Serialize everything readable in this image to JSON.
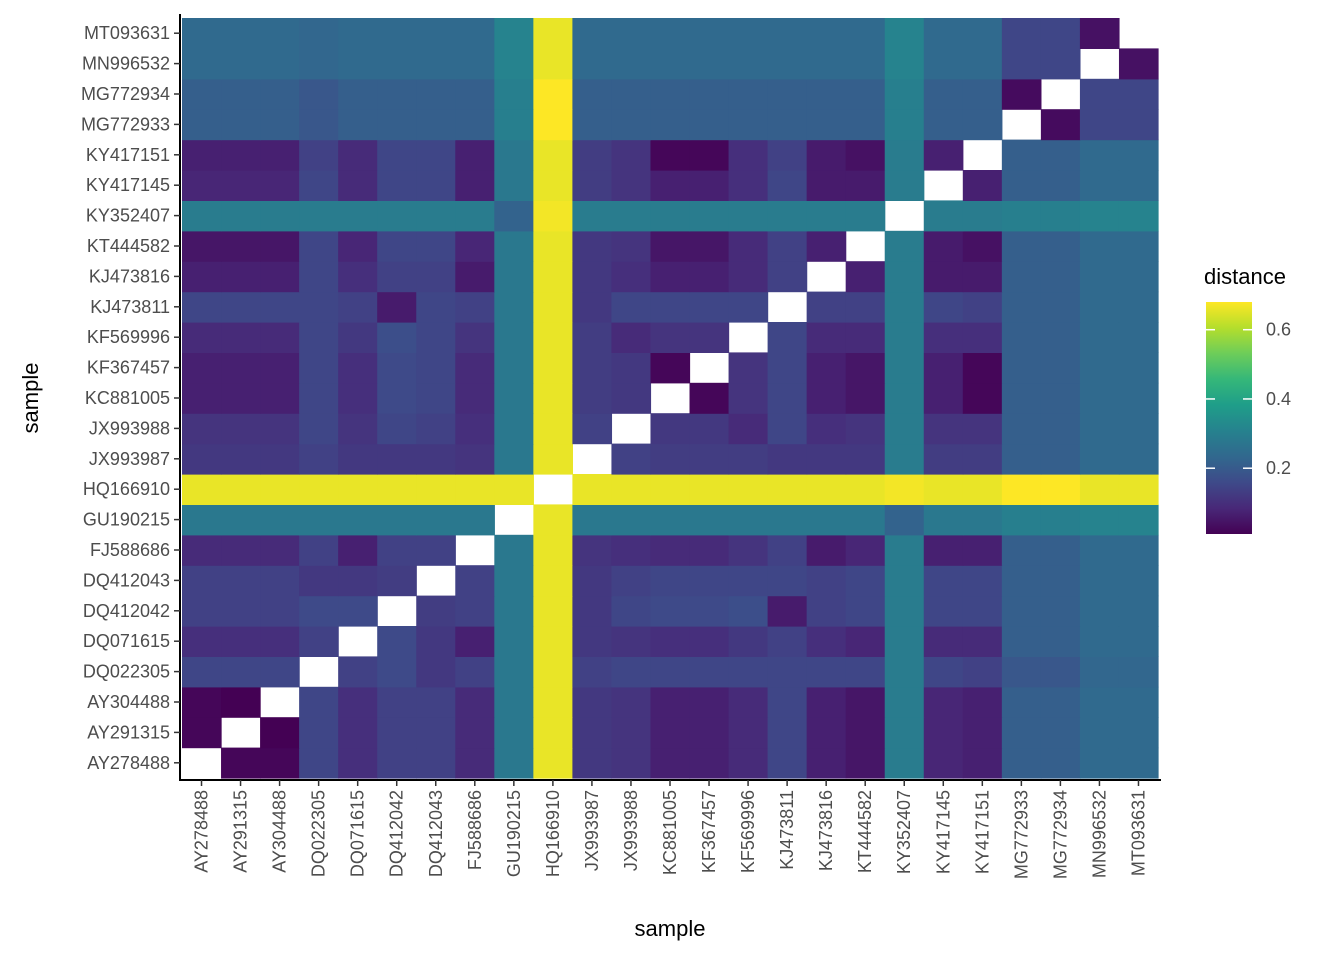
{
  "chart_data": {
    "type": "heatmap",
    "xlabel": "sample",
    "ylabel": "sample",
    "samples": [
      "AY278488",
      "AY291315",
      "AY304488",
      "DQ022305",
      "DQ071615",
      "DQ412042",
      "DQ412043",
      "FJ588686",
      "GU190215",
      "HQ166910",
      "JX993987",
      "JX993988",
      "KC881005",
      "KF367457",
      "KF569996",
      "KJ473811",
      "KJ473816",
      "KT444582",
      "KY352407",
      "KY417145",
      "KY417151",
      "MG772933",
      "MG772934",
      "MN996532",
      "MT093631"
    ],
    "color_scale": {
      "name": "viridis",
      "title": "distance",
      "range": [
        0.01,
        0.68
      ],
      "breaks": [
        0.2,
        0.4,
        0.6
      ],
      "break_labels": [
        "0.2",
        "0.4",
        "0.6"
      ],
      "stops": [
        "#440154",
        "#482878",
        "#3E4A89",
        "#31688E",
        "#26828E",
        "#1F9E89",
        "#35B779",
        "#6DCD59",
        "#B4DE2C",
        "#FDE725"
      ]
    },
    "diagonal": "blank",
    "grid": false,
    "legend_position": "right",
    "matrix": [
      [
        null,
        0.02,
        0.02,
        0.15,
        0.1,
        0.14,
        0.14,
        0.09,
        0.28,
        0.66,
        0.12,
        0.11,
        0.07,
        0.07,
        0.09,
        0.15,
        0.07,
        0.05,
        0.29,
        0.08,
        0.07,
        0.21,
        0.21,
        0.24,
        0.24
      ],
      [
        0.02,
        null,
        0.01,
        0.15,
        0.1,
        0.14,
        0.14,
        0.09,
        0.28,
        0.66,
        0.12,
        0.11,
        0.07,
        0.07,
        0.09,
        0.15,
        0.07,
        0.05,
        0.29,
        0.08,
        0.07,
        0.21,
        0.21,
        0.24,
        0.24
      ],
      [
        0.02,
        0.01,
        null,
        0.15,
        0.1,
        0.14,
        0.14,
        0.09,
        0.28,
        0.66,
        0.12,
        0.11,
        0.07,
        0.07,
        0.09,
        0.15,
        0.07,
        0.05,
        0.29,
        0.08,
        0.07,
        0.21,
        0.21,
        0.24,
        0.24
      ],
      [
        0.15,
        0.15,
        0.15,
        null,
        0.14,
        0.16,
        0.12,
        0.14,
        0.28,
        0.66,
        0.14,
        0.15,
        0.15,
        0.15,
        0.15,
        0.15,
        0.15,
        0.15,
        0.29,
        0.15,
        0.14,
        0.19,
        0.19,
        0.23,
        0.23
      ],
      [
        0.1,
        0.1,
        0.1,
        0.14,
        null,
        0.16,
        0.12,
        0.07,
        0.28,
        0.66,
        0.12,
        0.11,
        0.1,
        0.1,
        0.12,
        0.14,
        0.1,
        0.08,
        0.29,
        0.09,
        0.09,
        0.21,
        0.21,
        0.24,
        0.24
      ],
      [
        0.14,
        0.14,
        0.14,
        0.16,
        0.16,
        null,
        0.13,
        0.14,
        0.28,
        0.66,
        0.12,
        0.15,
        0.16,
        0.16,
        0.17,
        0.06,
        0.14,
        0.15,
        0.29,
        0.15,
        0.15,
        0.21,
        0.21,
        0.24,
        0.24
      ],
      [
        0.14,
        0.14,
        0.14,
        0.12,
        0.12,
        0.13,
        null,
        0.14,
        0.28,
        0.66,
        0.12,
        0.14,
        0.15,
        0.15,
        0.15,
        0.15,
        0.14,
        0.15,
        0.29,
        0.15,
        0.15,
        0.21,
        0.21,
        0.24,
        0.24
      ],
      [
        0.09,
        0.09,
        0.09,
        0.14,
        0.07,
        0.14,
        0.14,
        null,
        0.28,
        0.66,
        0.11,
        0.1,
        0.09,
        0.09,
        0.11,
        0.14,
        0.06,
        0.08,
        0.29,
        0.07,
        0.07,
        0.21,
        0.21,
        0.24,
        0.24
      ],
      [
        0.28,
        0.28,
        0.28,
        0.28,
        0.28,
        0.28,
        0.28,
        0.28,
        null,
        0.66,
        0.28,
        0.28,
        0.28,
        0.28,
        0.28,
        0.28,
        0.28,
        0.28,
        0.22,
        0.28,
        0.28,
        0.3,
        0.3,
        0.31,
        0.31
      ],
      [
        0.66,
        0.66,
        0.66,
        0.66,
        0.66,
        0.66,
        0.66,
        0.66,
        0.66,
        null,
        0.66,
        0.66,
        0.66,
        0.66,
        0.66,
        0.66,
        0.66,
        0.66,
        0.67,
        0.66,
        0.66,
        0.68,
        0.68,
        0.66,
        0.66
      ],
      [
        0.12,
        0.12,
        0.12,
        0.14,
        0.12,
        0.12,
        0.12,
        0.11,
        0.28,
        0.66,
        null,
        0.14,
        0.13,
        0.13,
        0.13,
        0.12,
        0.12,
        0.12,
        0.29,
        0.13,
        0.13,
        0.21,
        0.21,
        0.24,
        0.24
      ],
      [
        0.11,
        0.11,
        0.11,
        0.15,
        0.11,
        0.15,
        0.14,
        0.1,
        0.28,
        0.66,
        0.14,
        null,
        0.12,
        0.12,
        0.09,
        0.15,
        0.1,
        0.11,
        0.29,
        0.11,
        0.11,
        0.21,
        0.21,
        0.24,
        0.24
      ],
      [
        0.07,
        0.07,
        0.07,
        0.15,
        0.1,
        0.16,
        0.15,
        0.09,
        0.28,
        0.66,
        0.13,
        0.12,
        null,
        0.02,
        0.11,
        0.15,
        0.07,
        0.05,
        0.29,
        0.07,
        0.02,
        0.21,
        0.21,
        0.24,
        0.24
      ],
      [
        0.07,
        0.07,
        0.07,
        0.15,
        0.1,
        0.16,
        0.15,
        0.09,
        0.28,
        0.66,
        0.13,
        0.12,
        0.02,
        null,
        0.11,
        0.15,
        0.07,
        0.05,
        0.29,
        0.07,
        0.02,
        0.21,
        0.21,
        0.24,
        0.24
      ],
      [
        0.09,
        0.09,
        0.09,
        0.15,
        0.12,
        0.17,
        0.15,
        0.11,
        0.28,
        0.66,
        0.13,
        0.09,
        0.11,
        0.11,
        null,
        0.15,
        0.09,
        0.09,
        0.29,
        0.1,
        0.1,
        0.21,
        0.21,
        0.24,
        0.24
      ],
      [
        0.15,
        0.15,
        0.15,
        0.15,
        0.14,
        0.06,
        0.15,
        0.14,
        0.28,
        0.66,
        0.12,
        0.15,
        0.15,
        0.15,
        0.15,
        null,
        0.14,
        0.14,
        0.29,
        0.15,
        0.14,
        0.21,
        0.21,
        0.24,
        0.24
      ],
      [
        0.07,
        0.07,
        0.07,
        0.15,
        0.1,
        0.14,
        0.14,
        0.06,
        0.28,
        0.66,
        0.12,
        0.1,
        0.07,
        0.07,
        0.09,
        0.14,
        null,
        0.07,
        0.29,
        0.06,
        0.06,
        0.21,
        0.21,
        0.24,
        0.24
      ],
      [
        0.05,
        0.05,
        0.05,
        0.15,
        0.08,
        0.15,
        0.15,
        0.08,
        0.28,
        0.66,
        0.12,
        0.11,
        0.05,
        0.05,
        0.09,
        0.14,
        0.07,
        null,
        0.29,
        0.06,
        0.04,
        0.21,
        0.21,
        0.24,
        0.24
      ],
      [
        0.29,
        0.29,
        0.29,
        0.29,
        0.29,
        0.29,
        0.29,
        0.29,
        0.22,
        0.67,
        0.29,
        0.29,
        0.29,
        0.29,
        0.29,
        0.29,
        0.29,
        0.29,
        null,
        0.29,
        0.29,
        0.3,
        0.3,
        0.31,
        0.31
      ],
      [
        0.08,
        0.08,
        0.08,
        0.15,
        0.09,
        0.15,
        0.15,
        0.07,
        0.28,
        0.66,
        0.13,
        0.11,
        0.07,
        0.07,
        0.1,
        0.15,
        0.06,
        0.06,
        0.29,
        null,
        0.07,
        0.21,
        0.21,
        0.24,
        0.24
      ],
      [
        0.07,
        0.07,
        0.07,
        0.14,
        0.09,
        0.15,
        0.15,
        0.07,
        0.28,
        0.66,
        0.13,
        0.11,
        0.02,
        0.02,
        0.1,
        0.14,
        0.06,
        0.04,
        0.29,
        0.07,
        null,
        0.21,
        0.21,
        0.24,
        0.24
      ],
      [
        0.21,
        0.21,
        0.21,
        0.19,
        0.21,
        0.21,
        0.21,
        0.21,
        0.3,
        0.68,
        0.21,
        0.21,
        0.21,
        0.21,
        0.21,
        0.21,
        0.21,
        0.21,
        0.3,
        0.21,
        0.21,
        null,
        0.03,
        0.15,
        0.15
      ],
      [
        0.21,
        0.21,
        0.21,
        0.19,
        0.21,
        0.21,
        0.21,
        0.21,
        0.3,
        0.68,
        0.21,
        0.21,
        0.21,
        0.21,
        0.21,
        0.21,
        0.21,
        0.21,
        0.3,
        0.21,
        0.21,
        0.03,
        null,
        0.15,
        0.15
      ],
      [
        0.24,
        0.24,
        0.24,
        0.23,
        0.24,
        0.24,
        0.24,
        0.24,
        0.31,
        0.66,
        0.24,
        0.24,
        0.24,
        0.24,
        0.24,
        0.24,
        0.24,
        0.24,
        0.31,
        0.24,
        0.24,
        0.15,
        0.15,
        null,
        0.04
      ],
      [
        0.24,
        0.24,
        0.24,
        0.23,
        0.24,
        0.24,
        0.24,
        0.24,
        0.31,
        0.66,
        0.24,
        0.24,
        0.24,
        0.24,
        0.24,
        0.24,
        0.24,
        0.24,
        0.31,
        0.24,
        0.24,
        0.15,
        0.15,
        0.04,
        null
      ]
    ]
  }
}
